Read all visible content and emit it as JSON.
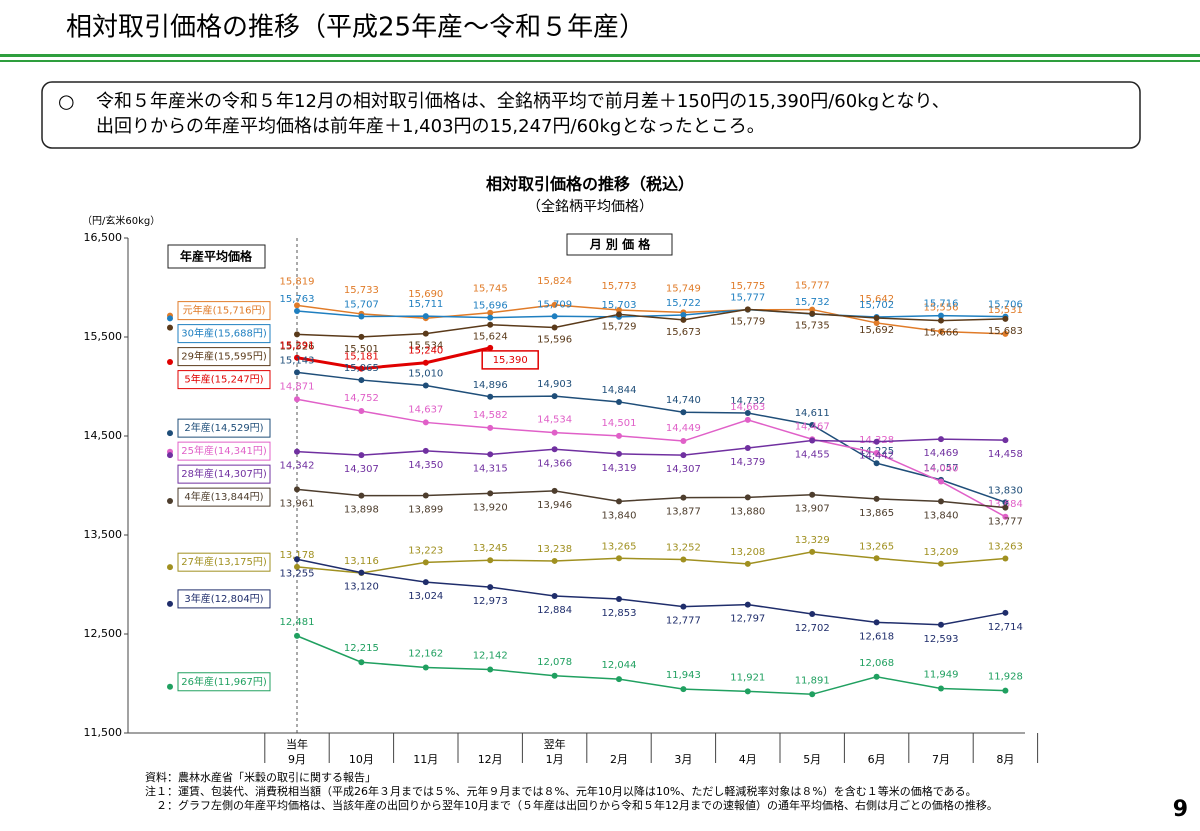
{
  "header": {
    "title": "相対取引価格の推移（平成25年産～令和５年産）"
  },
  "summary": {
    "bullet": "○",
    "lines": [
      "令和５年産米の令和５年12月の相対取引価格は、全銘柄平均で前月差＋150円の15,390円/60kgとなり、",
      "出回りからの年産平均価格は前年産＋1,403円の15,247円/60kgとなったところ。"
    ]
  },
  "chart_data": {
    "type": "line",
    "title": "相対取引価格の推移（税込）",
    "subtitle": "（全銘柄平均価格）",
    "y_label": "（円/玄米60kg）",
    "legend_title": "年産平均価格",
    "monthly_title": "月 別 価 格",
    "categories": [
      "9月",
      "10月",
      "11月",
      "12月",
      "1月",
      "2月",
      "3月",
      "4月",
      "5月",
      "6月",
      "7月",
      "8月"
    ],
    "category_groups": [
      {
        "index": 0,
        "label": "当年"
      },
      {
        "index": 4,
        "label": "翌年"
      }
    ],
    "ylim": [
      11500,
      16500
    ],
    "yticks": [
      {
        "value": 11500,
        "label": "11,500"
      },
      {
        "value": 12500,
        "label": "12,500"
      },
      {
        "value": 13500,
        "label": "13,500"
      },
      {
        "value": 14500,
        "label": "14,500"
      },
      {
        "value": 15500,
        "label": "15,500"
      },
      {
        "value": 16500,
        "label": "16,500"
      }
    ],
    "series": [
      {
        "name": "元年産(15,716円)",
        "average": 15716,
        "color": "#e07b28",
        "values": [
          15819,
          15733,
          15690,
          15745,
          15824,
          15773,
          15749,
          15775,
          15777,
          15642,
          15556,
          15531
        ],
        "value_labels": [
          "15,819",
          "15,733",
          "15,690",
          "15,745",
          "15,824",
          "15,773",
          "15,749",
          "15,775",
          "15,777",
          "15,642",
          "15,556",
          "15,531"
        ]
      },
      {
        "name": "30年産(15,688円)",
        "average": 15688,
        "color": "#1f7fc0",
        "values": [
          15763,
          15707,
          15711,
          15696,
          15709,
          15703,
          15722,
          15777,
          15732,
          15702,
          15716,
          15706
        ],
        "value_labels": [
          "15,763",
          "15,707",
          "15,711",
          "15,696",
          "15,709",
          "15,703",
          "15,722",
          "15,777",
          "15,732",
          "15,702",
          "15,716",
          "15,706"
        ]
      },
      {
        "name": "29年産(15,595円)",
        "average": 15595,
        "color": "#5a3a1a",
        "values": [
          15526,
          15501,
          15534,
          15624,
          15596,
          15729,
          15673,
          15779,
          15735,
          15692,
          15666,
          15683
        ],
        "value_labels": [
          "15,526",
          "15,501",
          "15,534",
          "15,624",
          "15,596",
          "15,729",
          "15,673",
          "15,779",
          "15,735",
          "15,692",
          "15,666",
          "15,683"
        ]
      },
      {
        "name": "5年産(15,247円)",
        "average": 15247,
        "color": "#e00000",
        "highlight_last": true,
        "values": [
          15291,
          15181,
          15240,
          15390,
          null,
          null,
          null,
          null,
          null,
          null,
          null,
          null
        ],
        "value_labels": [
          "15,291",
          "15,181",
          "15,240",
          "15,390",
          null,
          null,
          null,
          null,
          null,
          null,
          null,
          null
        ]
      },
      {
        "name": "2年産(14,529円)",
        "average": 14529,
        "color": "#1f4e79",
        "values": [
          15143,
          15065,
          15010,
          14896,
          14903,
          14844,
          14740,
          14732,
          14611,
          14225,
          14057,
          13830
        ],
        "value_labels": [
          "15,143",
          "15,065",
          "15,010",
          "14,896",
          "14,903",
          "14,844",
          "14,740",
          "14,732",
          "14,611",
          "14,225",
          "14,057",
          "13,830"
        ]
      },
      {
        "name": "25年産(14,341円)",
        "average": 14341,
        "color": "#e060c8",
        "values": [
          14871,
          14752,
          14637,
          14582,
          14534,
          14501,
          14449,
          14663,
          14467,
          14328,
          14040,
          13684
        ],
        "value_labels": [
          "14,871",
          "14,752",
          "14,637",
          "14,582",
          "14,534",
          "14,501",
          "14,449",
          "14,663",
          "14,467",
          "14,328",
          "14,040",
          "13,684"
        ]
      },
      {
        "name": "28年産(14,307円)",
        "average": 14307,
        "color": "#7030a0",
        "values": [
          14342,
          14307,
          14350,
          14315,
          14366,
          14319,
          14307,
          14379,
          14455,
          14442,
          14469,
          14458
        ],
        "value_labels": [
          "14,342",
          "14,307",
          "14,350",
          "14,315",
          "14,366",
          "14,319",
          "14,307",
          "14,379",
          "14,455",
          "14,442",
          "14,469",
          "14,458"
        ]
      },
      {
        "name": "4年産(13,844円)",
        "average": 13844,
        "color": "#4d3d2d",
        "values": [
          13961,
          13898,
          13899,
          13920,
          13946,
          13840,
          13877,
          13880,
          13907,
          13865,
          13840,
          13777
        ],
        "value_labels": [
          "13,961",
          "13,898",
          "13,899",
          "13,920",
          "13,946",
          "13,840",
          "13,877",
          "13,880",
          "13,907",
          "13,865",
          "13,840",
          "13,777"
        ]
      },
      {
        "name": "27年産(13,175円)",
        "average": 13175,
        "color": "#a09020",
        "values": [
          13178,
          13116,
          13223,
          13245,
          13238,
          13265,
          13252,
          13208,
          13329,
          13265,
          13209,
          13263
        ],
        "value_labels": [
          "13,178",
          "13,116",
          "13,223",
          "13,245",
          "13,238",
          "13,265",
          "13,252",
          "13,208",
          "13,329",
          "13,265",
          "13,209",
          "13,263"
        ]
      },
      {
        "name": "3年産(12,804円)",
        "average": 12804,
        "color": "#1f2d6b",
        "values": [
          13255,
          13120,
          13024,
          12973,
          12884,
          12853,
          12777,
          12797,
          12702,
          12618,
          12593,
          12714
        ],
        "value_labels": [
          "13,255",
          "13,120",
          "13,024",
          "12,973",
          "12,884",
          "12,853",
          "12,777",
          "12,797",
          "12,702",
          "12,618",
          "12,593",
          "12,714"
        ]
      },
      {
        "name": "26年産(11,967円)",
        "average": 11967,
        "color": "#20a060",
        "values": [
          12481,
          12215,
          12162,
          12142,
          12078,
          12044,
          11943,
          11921,
          11891,
          12068,
          11949,
          11928
        ],
        "value_labels": [
          "12,481",
          "12,215",
          "12,162",
          "12,142",
          "12,078",
          "12,044",
          "11,943",
          "11,921",
          "11,891",
          "12,068",
          "11,949",
          "11,928"
        ]
      }
    ]
  },
  "notes": [
    "資料：農林水産省「米穀の取引に関する報告」",
    "注１：運賃、包装代、消費税相当額（平成26年３月までは５%、元年９月までは８%、元年10月以降は10%、ただし軽減税率対象は８%）を含む１等米の価格である。",
    "　２：グラフ左側の年産平均価格は、当該年産の出回りから翌年10月まで（５年産は出回りから令和５年12月までの速報値）の通年平均価格、右側は月ごとの価格の推移。"
  ],
  "page_number": "9"
}
